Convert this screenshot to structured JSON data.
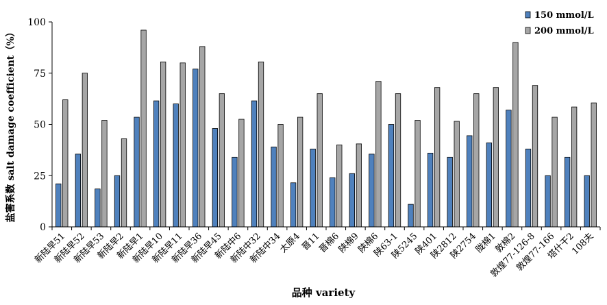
{
  "chart_data": {
    "type": "bar",
    "xlabel": "品种 variety",
    "ylabel": "盐害系数 salt damage coefficient（%）",
    "ylim": [
      0,
      100
    ],
    "yticks": [
      0,
      25,
      50,
      75,
      100
    ],
    "grid": false,
    "legend_position": "top-right",
    "categories": [
      "新陆早51",
      "新陆早52",
      "新陆早53",
      "新陆早2",
      "新陆早1",
      "新陆早10",
      "新陆早11",
      "新陆早36",
      "新陆早45",
      "新陆中6",
      "新陆中32",
      "新陆中34",
      "太原4",
      "晋11",
      "晋棉6",
      "陕棉9",
      "陕棉6",
      "陕63-1",
      "陕5245",
      "陕401",
      "陕2812",
      "陕2754",
      "陇棉1",
      "敦棉2",
      "敦煌77-126-8",
      "敦煌77-166",
      "塔什干2",
      "108夫"
    ],
    "series": [
      {
        "name": "150 mmol/L",
        "color": "#4f81bd",
        "values": [
          21,
          35.5,
          18.5,
          25,
          53.5,
          61.5,
          60,
          77,
          48,
          34,
          61.5,
          39,
          21.5,
          38,
          24,
          26,
          35.5,
          50,
          11,
          36,
          34,
          44.5,
          41,
          57,
          38,
          25,
          34,
          25
        ]
      },
      {
        "name": "200 mmol/L",
        "color": "#a6a6a6",
        "values": [
          62,
          75,
          52,
          43,
          96,
          80.5,
          80,
          88,
          65,
          52.5,
          80.5,
          50,
          53.5,
          65,
          40,
          40.5,
          71,
          65,
          52,
          68,
          51.5,
          65,
          68,
          90,
          69,
          53.5,
          58.5,
          60.5
        ]
      }
    ]
  }
}
